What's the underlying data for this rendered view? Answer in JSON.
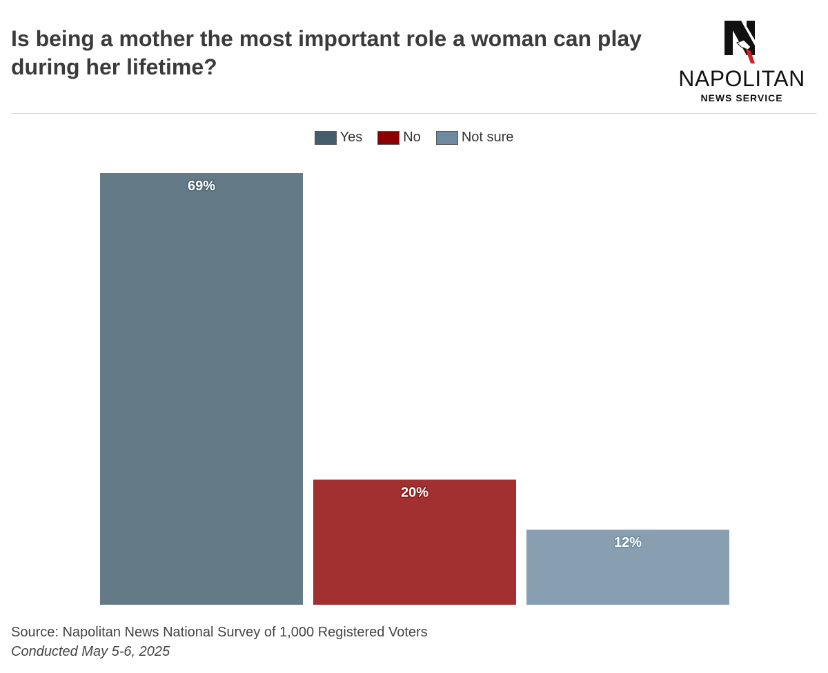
{
  "title": "Is being a mother the most important role a woman can play during her lifetime?",
  "logo": {
    "wordmark": "NAPOLITAN",
    "subtitle": "NEWS SERVICE",
    "icon": "napolitan-n-eagle-logo"
  },
  "legend": [
    {
      "label": "Yes",
      "color": "#445d6c"
    },
    {
      "label": "No",
      "color": "#8b0000"
    },
    {
      "label": "Not sure",
      "color": "#6f8aa0"
    }
  ],
  "chart_data": {
    "type": "bar",
    "categories": [
      "Yes",
      "No",
      "Not sure"
    ],
    "values": [
      69,
      20,
      12
    ],
    "data_labels": [
      "69%",
      "20%",
      "12%"
    ],
    "colors": [
      "#647b87",
      "#a33031",
      "#879fb1"
    ],
    "label_outline_colors": [
      "#445d6c",
      "#8b1a1a",
      "#6f8aa0"
    ],
    "title": "Is being a mother the most important role a woman can play during her lifetime?",
    "xlabel": "",
    "ylabel": "",
    "ylim": [
      0,
      69
    ],
    "grid": false,
    "legend_position": "top-center"
  },
  "footer": {
    "source": "Source: Napolitan News National Survey of 1,000 Registered Voters",
    "conducted": "Conducted May 5-6, 2025"
  }
}
